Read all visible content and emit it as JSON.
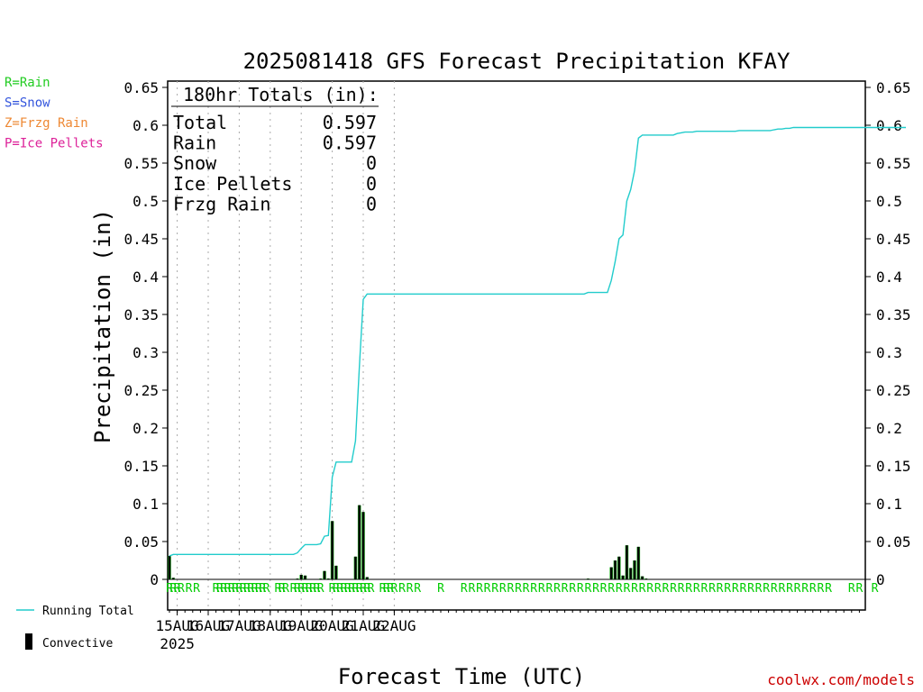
{
  "title": "2025081418 GFS Forecast Precipitation KFAY",
  "ylabel": "Precipitation (in)",
  "xlabel": "Forecast Time (UTC)",
  "credit": "coolwx.com/models",
  "ptype_legend": [
    {
      "label": "R=Rain",
      "color": "#22cc22"
    },
    {
      "label": "S=Snow",
      "color": "#3355dd"
    },
    {
      "label": "Z=Frzg Rain",
      "color": "#ee8833"
    },
    {
      "label": "P=Ice Pellets",
      "color": "#dd2299"
    }
  ],
  "series_legend": {
    "running_total": "Running Total",
    "convective": "Convective"
  },
  "totals": {
    "header": "180hr Totals (in):",
    "rows": [
      {
        "label": "Total",
        "value": "0.597"
      },
      {
        "label": "Rain",
        "value": "0.597"
      },
      {
        "label": "Snow",
        "value": "0"
      },
      {
        "label": "Ice Pellets",
        "value": "0"
      },
      {
        "label": "Frzg Rain",
        "value": "0"
      }
    ]
  },
  "colors": {
    "running_total": "#22cccc",
    "bar_fill": "#22aa22",
    "bar_convective": "#000000",
    "ptype_rain": "#00cc00"
  },
  "chart_data": {
    "type": "bar",
    "xaxis": {
      "start": "2025-08-14 18Z",
      "end": "2025-08-22 06Z",
      "step_hours": 3,
      "tick_labels": [
        "15AUG",
        "16AUG",
        "17AUG",
        "18AUG",
        "19AUG",
        "20AUG",
        "21AUG",
        "22AUG"
      ],
      "year_label": "2025"
    },
    "ylim": [
      0,
      0.65
    ],
    "yticks": [
      "0",
      "0.05",
      "0.1",
      "0.15",
      "0.2",
      "0.25",
      "0.3",
      "0.35",
      "0.4",
      "0.45",
      "0.5",
      "0.55",
      "0.6",
      "0.65"
    ],
    "grid": "vertical dotted at day boundaries",
    "series": [
      {
        "name": "Running Total",
        "type": "line",
        "values": [
          0.031,
          0.033,
          0.033,
          0.033,
          0.033,
          0.033,
          0.033,
          0.033,
          0.033,
          0.033,
          0.033,
          0.033,
          0.033,
          0.033,
          0.033,
          0.033,
          0.033,
          0.033,
          0.033,
          0.033,
          0.033,
          0.033,
          0.033,
          0.033,
          0.033,
          0.033,
          0.033,
          0.033,
          0.033,
          0.033,
          0.033,
          0.033,
          0.033,
          0.035,
          0.041,
          0.046,
          0.046,
          0.046,
          0.046,
          0.047,
          0.057,
          0.058,
          0.135,
          0.155,
          0.155,
          0.155,
          0.155,
          0.155,
          0.183,
          0.281,
          0.37,
          0.377,
          0.377,
          0.377,
          0.377,
          0.377,
          0.377,
          0.377,
          0.377,
          0.377,
          0.377,
          0.377,
          0.377,
          0.377,
          0.377,
          0.377,
          0.377,
          0.377,
          0.377,
          0.377,
          0.377,
          0.377,
          0.377,
          0.377,
          0.377,
          0.377,
          0.377,
          0.377,
          0.377,
          0.377,
          0.377,
          0.377,
          0.377,
          0.377,
          0.377,
          0.377,
          0.377,
          0.377,
          0.377,
          0.377,
          0.377,
          0.377,
          0.377,
          0.377,
          0.377,
          0.377,
          0.377,
          0.377,
          0.377,
          0.377,
          0.377,
          0.377,
          0.377,
          0.377,
          0.377,
          0.377,
          0.377,
          0.377,
          0.379,
          0.379,
          0.379,
          0.379,
          0.379,
          0.379,
          0.395,
          0.42,
          0.45,
          0.455,
          0.5,
          0.515,
          0.54,
          0.583,
          0.587,
          0.587,
          0.587,
          0.587,
          0.587,
          0.587,
          0.587,
          0.587,
          0.587,
          0.589,
          0.59,
          0.591,
          0.591,
          0.591,
          0.592,
          0.592,
          0.592,
          0.592,
          0.592,
          0.592,
          0.592,
          0.592,
          0.592,
          0.592,
          0.592,
          0.593,
          0.593,
          0.593,
          0.593,
          0.593,
          0.593,
          0.593,
          0.593,
          0.593,
          0.594,
          0.595,
          0.595,
          0.596,
          0.596,
          0.597,
          0.597,
          0.597,
          0.597,
          0.597,
          0.597,
          0.597,
          0.597,
          0.597,
          0.597,
          0.597,
          0.597,
          0.597,
          0.597,
          0.597,
          0.597,
          0.597,
          0.597,
          0.597,
          0.597,
          0.597,
          0.597,
          0.597,
          0.597,
          0.597,
          0.597,
          0.597,
          0.597,
          0.597,
          0.597
        ]
      },
      {
        "name": "Convective",
        "type": "bar",
        "note": "bar heights per 3h step (total precip)",
        "values": [
          0.031,
          0.002,
          0,
          0,
          0,
          0,
          0,
          0,
          0,
          0,
          0,
          0,
          0,
          0,
          0,
          0,
          0,
          0,
          0,
          0,
          0,
          0,
          0,
          0,
          0,
          0,
          0,
          0,
          0,
          0,
          0,
          0,
          0,
          0.001,
          0.006,
          0.005,
          0,
          0,
          0,
          0.001,
          0.011,
          0.001,
          0.077,
          0.018,
          0,
          0,
          0,
          0,
          0.03,
          0.098,
          0.089,
          0.003,
          0,
          0,
          0,
          0,
          0,
          0,
          0,
          0,
          0,
          0,
          0,
          0,
          0,
          0,
          0,
          0,
          0,
          0,
          0,
          0,
          0,
          0,
          0,
          0,
          0,
          0,
          0,
          0,
          0,
          0,
          0,
          0,
          0,
          0,
          0,
          0,
          0,
          0,
          0,
          0,
          0,
          0,
          0,
          0,
          0,
          0,
          0,
          0,
          0,
          0,
          0,
          0,
          0,
          0,
          0,
          0,
          0.001,
          0,
          0,
          0,
          0,
          0,
          0.016,
          0.025,
          0.03,
          0.005,
          0.045,
          0.015,
          0.025,
          0.043,
          0.004,
          0.001,
          0,
          0,
          0,
          0,
          0,
          0,
          0,
          0,
          0,
          0,
          0,
          0,
          0,
          0,
          0,
          0,
          0,
          0,
          0,
          0,
          0,
          0,
          0,
          0,
          0,
          0,
          0,
          0,
          0,
          0,
          0,
          0,
          0,
          0,
          0,
          0,
          0,
          0,
          0,
          0,
          0,
          0,
          0,
          0,
          0,
          0,
          0,
          0,
          0,
          0,
          0,
          0,
          0,
          0,
          0,
          0,
          0,
          0,
          0,
          0,
          0,
          0,
          0,
          0,
          0,
          0,
          0,
          0,
          0,
          0,
          0,
          0,
          0,
          0,
          0,
          0
        ]
      }
    ],
    "ptype_marks": {
      "symbol": "R",
      "steps": [
        0,
        1,
        2,
        3,
        5,
        7,
        12,
        13,
        14,
        15,
        16,
        17,
        18,
        19,
        20,
        21,
        22,
        23,
        24,
        25,
        28,
        29,
        30,
        32,
        33,
        34,
        35,
        36,
        37,
        38,
        39,
        42,
        43,
        44,
        45,
        46,
        47,
        48,
        49,
        50,
        51,
        52,
        55,
        56,
        57,
        58,
        60,
        62,
        64,
        70,
        76,
        78,
        80,
        82,
        84,
        86,
        88,
        90,
        92,
        94,
        96,
        98,
        100,
        102,
        104,
        106,
        108,
        110,
        112,
        114,
        116,
        118,
        120,
        122,
        124,
        126,
        128,
        130,
        132,
        134,
        136,
        138,
        140,
        142,
        144,
        146,
        148,
        150,
        152,
        154,
        156,
        158,
        160,
        162,
        164,
        166,
        168,
        170,
        176,
        178,
        182
      ]
    }
  }
}
